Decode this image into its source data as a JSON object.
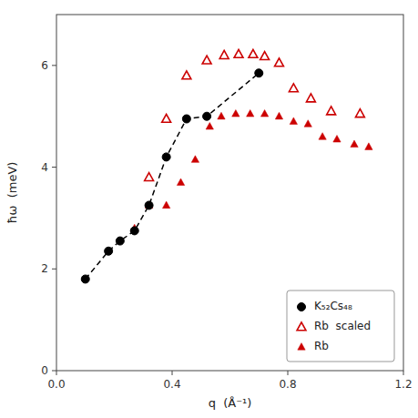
{
  "chart_data": {
    "type": "scatter",
    "x_label": "q  (Å⁻¹)",
    "y_label": "ħω  (meV)",
    "series": [
      {
        "name": "Rb",
        "color": "#cc0000",
        "marker": "triangle",
        "line_style": "none",
        "x": [
          0.27,
          0.32,
          0.38,
          0.43,
          0.48,
          0.53,
          0.57,
          0.62,
          0.67,
          0.72,
          0.77,
          0.82,
          0.87,
          0.92,
          0.97,
          1.03,
          1.08
        ],
        "values": [
          2.8,
          3.25,
          3.25,
          3.7,
          4.15,
          4.8,
          5.0,
          5.05,
          5.05,
          5.05,
          5.0,
          4.9,
          4.85,
          4.6,
          4.55,
          4.45,
          4.4
        ]
      },
      {
        "name": "Rb  scaled",
        "color": "#cc0000",
        "marker": "open-triangle",
        "line_style": "none",
        "x": [
          0.32,
          0.38,
          0.45,
          0.52,
          0.58,
          0.63,
          0.68,
          0.72,
          0.77,
          0.82,
          0.88,
          0.95,
          1.05
        ],
        "values": [
          3.8,
          4.95,
          5.8,
          6.1,
          6.2,
          6.22,
          6.22,
          6.18,
          6.05,
          5.55,
          5.35,
          5.1,
          5.05
        ]
      },
      {
        "name": "K₅₂Cs₄₈",
        "color": "#000000",
        "marker": "circle",
        "line_style": "dashed",
        "x": [
          0.1,
          0.18,
          0.22,
          0.27,
          0.32,
          0.38,
          0.45,
          0.52,
          0.7
        ],
        "values": [
          1.8,
          2.35,
          2.55,
          2.75,
          3.25,
          4.2,
          4.95,
          5.0,
          5.85
        ]
      }
    ],
    "xlim": [
      0.0,
      1.2
    ],
    "ylim": [
      0,
      7
    ],
    "xticks": [
      {
        "value": 0.0,
        "label": "0.0"
      },
      0.4,
      0.8,
      1.2
    ],
    "yticks": [
      0,
      2,
      4,
      6
    ],
    "grid": false,
    "legend": "lower right"
  }
}
